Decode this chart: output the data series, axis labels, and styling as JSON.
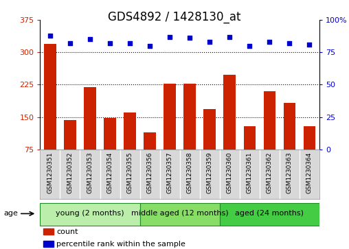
{
  "title": "GDS4892 / 1428130_at",
  "samples": [
    "GSM1230351",
    "GSM1230352",
    "GSM1230353",
    "GSM1230354",
    "GSM1230355",
    "GSM1230356",
    "GSM1230357",
    "GSM1230358",
    "GSM1230359",
    "GSM1230360",
    "GSM1230361",
    "GSM1230362",
    "GSM1230363",
    "GSM1230364"
  ],
  "counts": [
    320,
    143,
    220,
    148,
    160,
    115,
    228,
    227,
    168,
    248,
    128,
    210,
    183,
    128
  ],
  "percentiles": [
    88,
    82,
    85,
    82,
    82,
    80,
    87,
    86,
    83,
    87,
    80,
    83,
    82,
    81
  ],
  "ylim_left": [
    75,
    375
  ],
  "ylim_right": [
    0,
    100
  ],
  "yticks_left": [
    75,
    150,
    225,
    300,
    375
  ],
  "yticks_right": [
    0,
    25,
    50,
    75,
    100
  ],
  "ytick_right_labels": [
    "0",
    "25",
    "50",
    "75",
    "100%"
  ],
  "bar_color": "#cc2200",
  "dot_color": "#0000cc",
  "grid_lines": [
    150,
    225,
    300
  ],
  "age_groups": [
    {
      "label": "young (2 months)",
      "start": 0,
      "end": 5,
      "color": "#bbeeaa"
    },
    {
      "label": "middle aged (12 months)",
      "start": 5,
      "end": 9,
      "color": "#88dd66"
    },
    {
      "label": "aged (24 months)",
      "start": 9,
      "end": 14,
      "color": "#44cc44"
    }
  ],
  "legend_items": [
    {
      "label": "count",
      "color": "#cc2200"
    },
    {
      "label": "percentile rank within the sample",
      "color": "#0000cc"
    }
  ],
  "age_label": "age",
  "title_fontsize": 12,
  "axis_tick_fontsize": 8,
  "sample_fontsize": 6.5,
  "age_fontsize": 8,
  "legend_fontsize": 8,
  "n_samples": 14
}
